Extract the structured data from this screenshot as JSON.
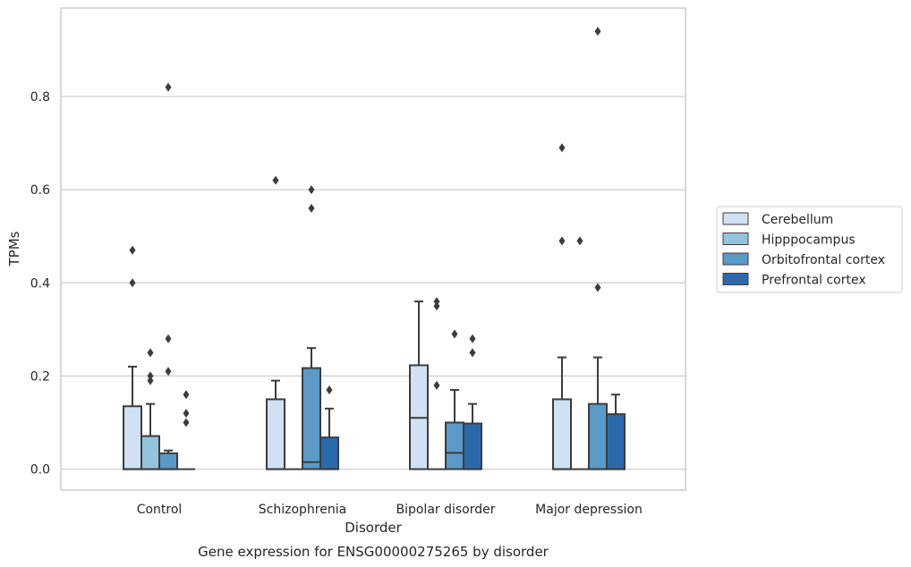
{
  "chart_data": {
    "type": "boxplot",
    "caption": "Gene expression for ENSG00000275265 by disorder",
    "xlabel": "Disorder",
    "ylabel": "TPMs",
    "ylim": [
      -0.045,
      0.99
    ],
    "yticks": [
      0.0,
      0.2,
      0.4,
      0.6,
      0.8
    ],
    "ytick_labels": [
      "0.0",
      "0.2",
      "0.4",
      "0.6",
      "0.8"
    ],
    "grid": "horizontal",
    "legend_placement": "center-right, outside plot",
    "categories": [
      "Control",
      "Schizophrenia",
      "Bipolar disorder",
      "Major depression"
    ],
    "series": [
      {
        "name": "Cerebellum",
        "color": "#cfe1f2",
        "boxes": [
          {
            "q1": 0.0,
            "median": 0.0,
            "q3": 0.135,
            "whisker_low": 0.0,
            "whisker_high": 0.22,
            "outliers": [
              0.4,
              0.47
            ]
          },
          {
            "q1": 0.0,
            "median": 0.0,
            "q3": 0.15,
            "whisker_low": 0.0,
            "whisker_high": 0.19,
            "outliers": [
              0.62
            ]
          },
          {
            "q1": 0.0,
            "median": 0.11,
            "q3": 0.223,
            "whisker_low": 0.0,
            "whisker_high": 0.36,
            "outliers": []
          },
          {
            "q1": 0.0,
            "median": 0.0,
            "q3": 0.15,
            "whisker_low": 0.0,
            "whisker_high": 0.24,
            "outliers": [
              0.49,
              0.69
            ]
          }
        ]
      },
      {
        "name": "Hipppocampus",
        "color": "#93c4de",
        "boxes": [
          {
            "q1": 0.0,
            "median": 0.0,
            "q3": 0.071,
            "whisker_low": 0.0,
            "whisker_high": 0.14,
            "outliers": [
              0.19,
              0.2,
              0.25
            ]
          },
          {
            "q1": 0.0,
            "median": 0.0,
            "q3": 0.0,
            "whisker_low": 0.0,
            "whisker_high": 0.0,
            "outliers": []
          },
          {
            "q1": 0.0,
            "median": 0.0,
            "q3": 0.0,
            "whisker_low": 0.0,
            "whisker_high": 0.0,
            "outliers": [
              0.18,
              0.35,
              0.36
            ]
          },
          {
            "q1": 0.0,
            "median": 0.0,
            "q3": 0.0,
            "whisker_low": 0.0,
            "whisker_high": 0.0,
            "outliers": [
              0.49
            ]
          }
        ]
      },
      {
        "name": "Orbitofrontal cortex",
        "color": "#5a9ac8",
        "boxes": [
          {
            "q1": 0.0,
            "median": 0.0,
            "q3": 0.034,
            "whisker_low": 0.0,
            "whisker_high": 0.04,
            "outliers": [
              0.21,
              0.28,
              0.82
            ]
          },
          {
            "q1": 0.0,
            "median": 0.015,
            "q3": 0.217,
            "whisker_low": 0.0,
            "whisker_high": 0.26,
            "outliers": [
              0.56,
              0.6
            ]
          },
          {
            "q1": 0.0,
            "median": 0.035,
            "q3": 0.1,
            "whisker_low": 0.0,
            "whisker_high": 0.17,
            "outliers": [
              0.29
            ]
          },
          {
            "q1": 0.0,
            "median": 0.0,
            "q3": 0.14,
            "whisker_low": 0.0,
            "whisker_high": 0.24,
            "outliers": [
              0.39,
              0.94
            ]
          }
        ]
      },
      {
        "name": "Prefrontal cortex",
        "color": "#2a6aac",
        "boxes": [
          {
            "q1": 0.0,
            "median": 0.0,
            "q3": 0.0,
            "whisker_low": 0.0,
            "whisker_high": 0.0,
            "outliers": [
              0.1,
              0.12,
              0.16
            ]
          },
          {
            "q1": 0.0,
            "median": 0.0,
            "q3": 0.068,
            "whisker_low": 0.0,
            "whisker_high": 0.13,
            "outliers": [
              0.17
            ]
          },
          {
            "q1": 0.0,
            "median": 0.0,
            "q3": 0.098,
            "whisker_low": 0.0,
            "whisker_high": 0.14,
            "outliers": [
              0.25,
              0.28
            ]
          },
          {
            "q1": 0.0,
            "median": 0.0,
            "q3": 0.118,
            "whisker_low": 0.0,
            "whisker_high": 0.16,
            "outliers": []
          }
        ]
      }
    ]
  }
}
